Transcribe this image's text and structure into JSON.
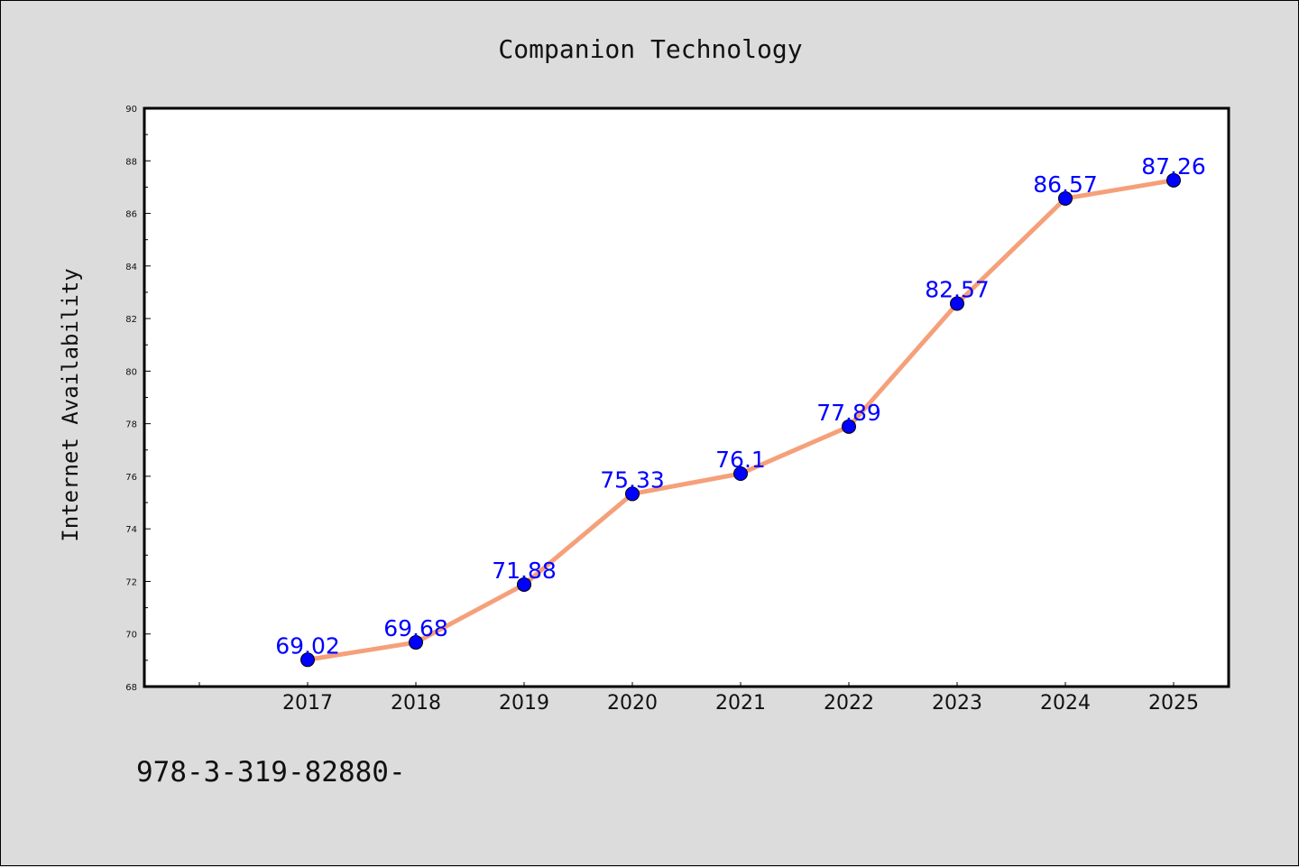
{
  "chart_data": {
    "type": "line",
    "title": "Companion Technology",
    "ylabel": "Internet Availability",
    "xlabel": "",
    "categories": [
      "2017",
      "2018",
      "2019",
      "2020",
      "2021",
      "2022",
      "2023",
      "2024",
      "2025"
    ],
    "series": [
      {
        "values": [
          69.02,
          69.68,
          71.88,
          75.33,
          76.1,
          77.89,
          82.57,
          86.57,
          87.26
        ],
        "labels": [
          "69.02",
          "69.68",
          "71.88",
          "75.33",
          "76.1",
          "77.89",
          "82.57",
          "86.57",
          "87.26"
        ],
        "line_color": "#f5a07a",
        "marker_color": "#0000ff"
      }
    ],
    "ylim": [
      68,
      90
    ],
    "yticks": [
      "68",
      "70",
      "72",
      "74",
      "76",
      "78",
      "80",
      "82",
      "84",
      "86",
      "88",
      "90"
    ],
    "grid": false,
    "legend": "none"
  },
  "footer_text": "978-3-319-82880-"
}
